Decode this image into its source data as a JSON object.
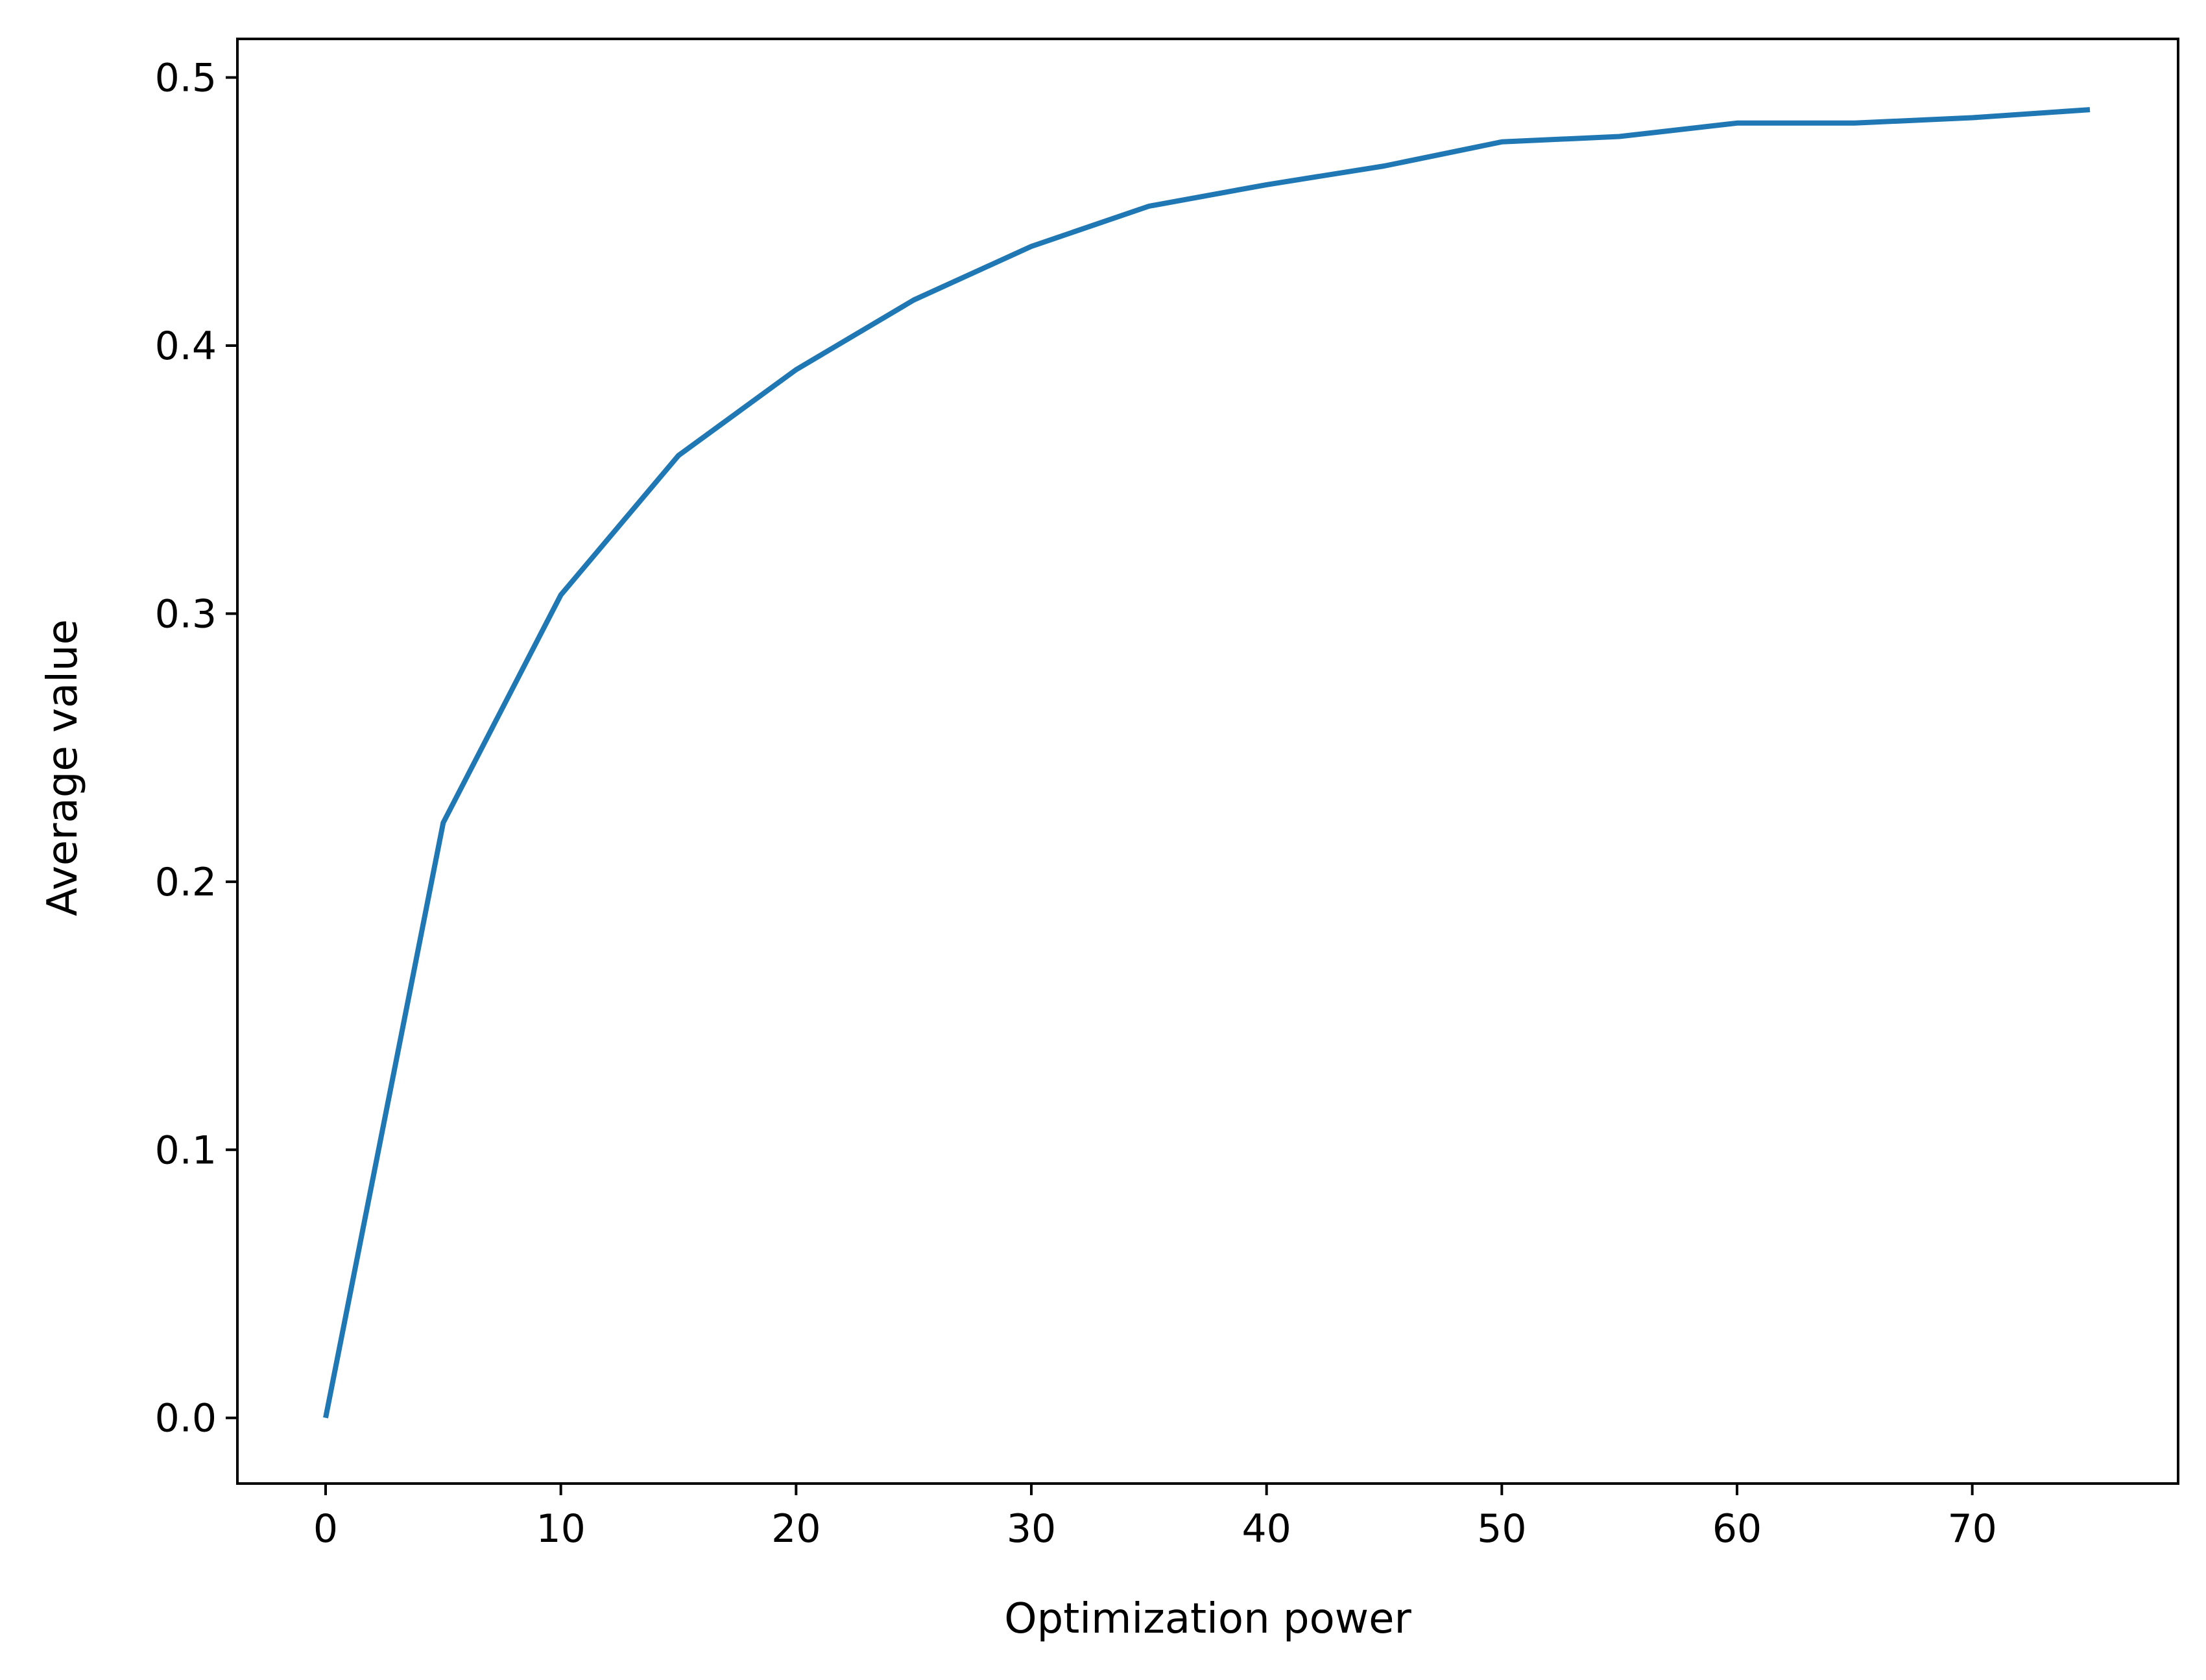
{
  "chart_data": {
    "type": "line",
    "title": "",
    "xlabel": "Optimization power",
    "ylabel": "Average value",
    "xlim": [
      -3.75,
      78.75
    ],
    "ylim": [
      -0.0245,
      0.5144
    ],
    "xticks": [
      0,
      10,
      20,
      30,
      40,
      50,
      60,
      70
    ],
    "xtick_labels": [
      "0",
      "10",
      "20",
      "30",
      "40",
      "50",
      "60",
      "70"
    ],
    "yticks": [
      0.0,
      0.1,
      0.2,
      0.3,
      0.4,
      0.5
    ],
    "ytick_labels": [
      "0.0",
      "0.1",
      "0.2",
      "0.3",
      "0.4",
      "0.5"
    ],
    "grid": false,
    "legend": "none",
    "series": [
      {
        "color": "#1f77b4",
        "x": [
          0,
          5,
          10,
          15,
          20,
          25,
          30,
          35,
          40,
          45,
          50,
          55,
          60,
          65,
          70,
          75
        ],
        "y": [
          0.0,
          0.222,
          0.307,
          0.359,
          0.391,
          0.417,
          0.437,
          0.452,
          0.46,
          0.467,
          0.476,
          0.478,
          0.483,
          0.483,
          0.485,
          0.488
        ]
      }
    ]
  }
}
